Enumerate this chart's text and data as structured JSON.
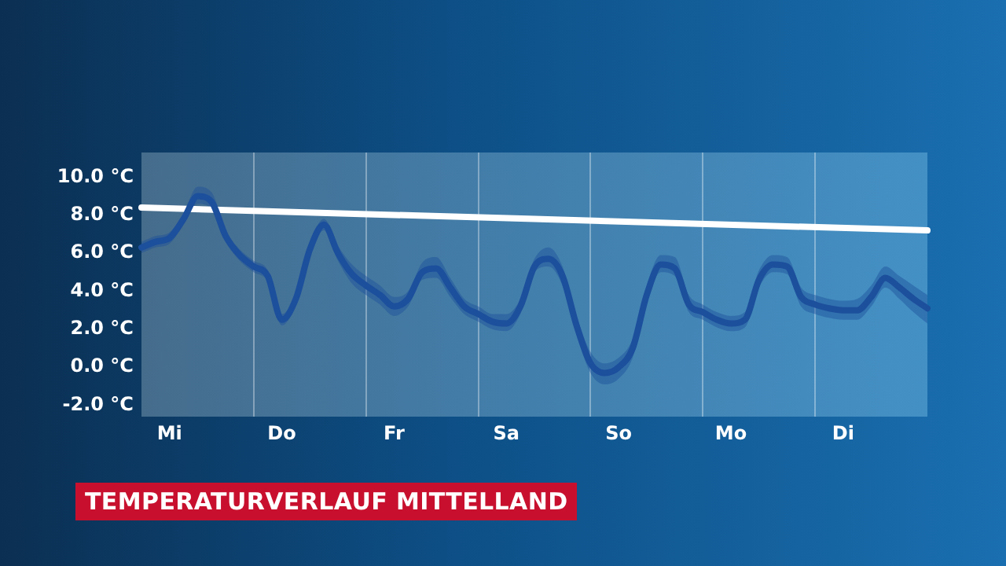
{
  "chart_data": {
    "type": "line",
    "title": "TEMPERATURVERLAUF MITTELLAND",
    "categories": [
      null,
      null,
      "Mi",
      null,
      null,
      null,
      null,
      null,
      null,
      null,
      "Do",
      null,
      null,
      null,
      null,
      null,
      null,
      null,
      "Fr",
      null,
      null,
      null,
      null,
      null,
      null,
      null,
      "Sa",
      null,
      null,
      null,
      null,
      null,
      null,
      null,
      "So",
      null,
      null,
      null,
      null,
      null,
      null,
      null,
      "Mo",
      null,
      null,
      null,
      null,
      null,
      null,
      null,
      "Di",
      null,
      null,
      null,
      null,
      null,
      null
    ],
    "ylim": [
      -2.6,
      11.3
    ],
    "yticks": [
      {
        "value": -2,
        "label": "-2.0 °C"
      },
      {
        "value": 0,
        "label": "0.0 °C"
      },
      {
        "value": 2,
        "label": "2.0 °C"
      },
      {
        "value": 4,
        "label": "4.0 °C"
      },
      {
        "value": 6,
        "label": "6.0 °C"
      },
      {
        "value": 8,
        "label": "8.0 °C"
      },
      {
        "value": 10,
        "label": "10.0 °C"
      }
    ],
    "grid": "x",
    "legend": false,
    "marker": "none",
    "line_style": "solid",
    "series": [
      {
        "color": "#1c4f9c",
        "values": [
          6.3,
          6.6,
          6.8,
          7.8,
          9.0,
          8.7,
          6.9,
          5.9,
          5.3,
          4.8,
          2.5,
          3.6,
          6.2,
          7.5,
          6.0,
          4.9,
          4.3,
          3.8,
          3.2,
          3.6,
          5.0,
          5.2,
          4.2,
          3.2,
          2.8,
          2.4,
          2.3,
          3.2,
          5.3,
          5.7,
          4.8,
          2.2,
          0.2,
          -0.3,
          0.0,
          1.0,
          3.8,
          5.4,
          5.2,
          3.3,
          2.9,
          2.5,
          2.3,
          2.5,
          4.6,
          5.4,
          5.3,
          3.7,
          3.3,
          3.1,
          3.0,
          3.0,
          3.7,
          4.7,
          4.2,
          3.6,
          3.1
        ],
        "lower": [
          6.0,
          6.3,
          6.5,
          7.5,
          8.6,
          8.3,
          6.6,
          5.6,
          5.0,
          4.5,
          2.2,
          3.3,
          5.9,
          7.2,
          5.6,
          4.4,
          3.8,
          3.3,
          2.7,
          3.2,
          4.6,
          4.7,
          3.7,
          2.8,
          2.4,
          2.0,
          1.9,
          2.8,
          5.0,
          5.3,
          4.3,
          1.7,
          -0.3,
          -0.9,
          -0.6,
          0.5,
          3.4,
          5.0,
          4.8,
          2.9,
          2.5,
          2.1,
          1.9,
          2.1,
          4.2,
          5.0,
          4.9,
          3.2,
          2.8,
          2.6,
          2.5,
          2.5,
          3.2,
          4.2,
          3.6,
          2.9,
          2.3
        ],
        "upper": [
          6.6,
          6.9,
          7.1,
          8.1,
          9.5,
          9.2,
          7.2,
          6.2,
          5.6,
          5.1,
          2.8,
          3.9,
          6.5,
          7.8,
          6.4,
          5.4,
          4.8,
          4.3,
          3.7,
          4.0,
          5.5,
          5.8,
          4.7,
          3.6,
          3.2,
          2.8,
          2.8,
          3.6,
          5.7,
          6.3,
          5.3,
          2.7,
          0.8,
          0.2,
          0.5,
          1.5,
          4.3,
          5.9,
          5.8,
          3.8,
          3.3,
          2.9,
          2.7,
          2.9,
          5.1,
          5.9,
          5.8,
          4.2,
          3.8,
          3.6,
          3.5,
          3.6,
          4.3,
          5.3,
          4.8,
          4.3,
          3.8
        ]
      },
      {
        "type": "line",
        "color": "#ffffff",
        "values": [
          8.4,
          null,
          null,
          null,
          null,
          null,
          null,
          null,
          null,
          null,
          null,
          null,
          null,
          null,
          null,
          null,
          null,
          null,
          null,
          null,
          null,
          null,
          null,
          null,
          null,
          null,
          null,
          null,
          null,
          null,
          null,
          null,
          null,
          null,
          null,
          null,
          null,
          null,
          null,
          null,
          null,
          null,
          null,
          null,
          null,
          null,
          null,
          null,
          null,
          null,
          null,
          null,
          null,
          null,
          null,
          null,
          7.2
        ]
      }
    ]
  }
}
